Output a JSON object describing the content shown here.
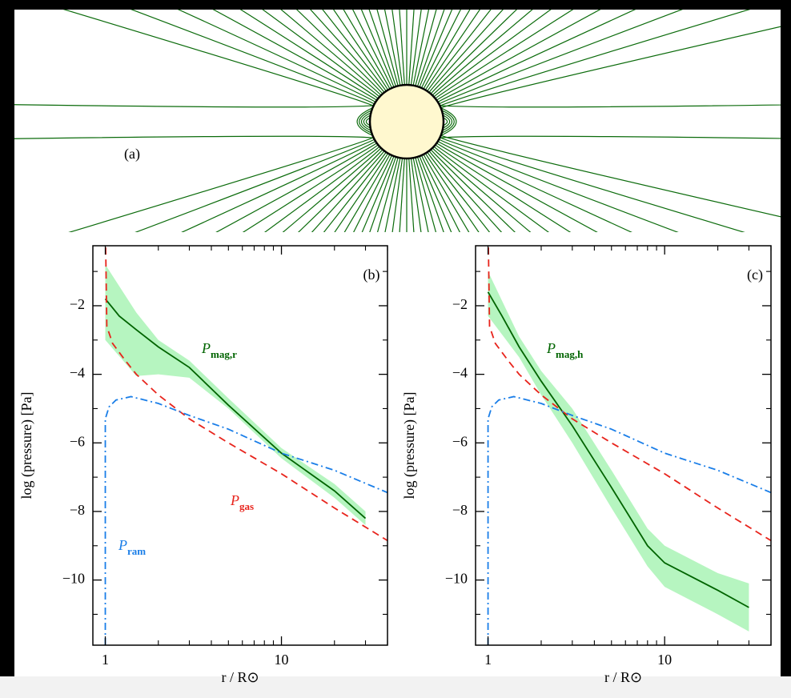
{
  "diagram": {
    "label": "(a)"
  },
  "chart_data": [
    {
      "type": "line",
      "label": "(b)",
      "xlabel": "r / R⊙",
      "ylabel": "log (pressure) [Pa]",
      "log_x": true,
      "xlim": [
        0.85,
        40
      ],
      "ylim": [
        -11.9,
        -0.25
      ],
      "xticks": [
        1,
        10
      ],
      "xminorticks": [
        2,
        3,
        4,
        5,
        6,
        7,
        8,
        9,
        20,
        30,
        40
      ],
      "yticks": [
        {
          "value": -10,
          "label": "−10"
        },
        {
          "value": -8,
          "label": "−8"
        },
        {
          "value": -6,
          "label": "−6"
        },
        {
          "value": -4,
          "label": "−4"
        },
        {
          "value": -2,
          "label": "−2"
        }
      ],
      "yminorticks": [
        -11,
        -9,
        -7,
        -5,
        -3,
        -1
      ],
      "series": [
        {
          "name": "P",
          "subscript": "mag,r",
          "color": "#006400",
          "dash": "solid",
          "x": [
            1,
            1.2,
            1.5,
            2,
            3,
            5,
            10,
            20,
            30
          ],
          "values": [
            -1.8,
            -2.3,
            -2.7,
            -3.2,
            -3.8,
            -4.9,
            -6.3,
            -7.4,
            -8.2
          ],
          "band_color": "#b6f5c0",
          "band_x": [
            1,
            1.5,
            2,
            3,
            5,
            10,
            20,
            30
          ],
          "band_upper": [
            -0.8,
            -2.2,
            -3.0,
            -3.6,
            -4.7,
            -6.15,
            -7.2,
            -8.0
          ],
          "band_lower": [
            -3.0,
            -4.05,
            -4.0,
            -4.1,
            -5.0,
            -6.45,
            -7.6,
            -8.4
          ]
        },
        {
          "name": "P",
          "subscript": "gas",
          "color": "#e8241c",
          "dash": "dashed",
          "x": [
            1.005,
            1.02,
            1.1,
            1.3,
            1.5,
            2,
            3,
            5,
            10,
            20,
            40
          ],
          "values": [
            -0.3,
            -2.6,
            -3.1,
            -3.6,
            -4.0,
            -4.6,
            -5.3,
            -6.0,
            -6.9,
            -7.9,
            -8.85
          ]
        },
        {
          "name": "P",
          "subscript": "ram",
          "color": "#1a7ee8",
          "dash": "dashdot",
          "x": [
            1,
            1,
            1.05,
            1.15,
            1.4,
            2,
            3,
            5,
            10,
            20,
            40
          ],
          "values": [
            -11.9,
            -5.3,
            -4.95,
            -4.75,
            -4.65,
            -4.85,
            -5.2,
            -5.6,
            -6.3,
            -6.8,
            -7.45
          ]
        }
      ]
    },
    {
      "type": "line",
      "label": "(c)",
      "xlabel": "r / R⊙",
      "ylabel": "log (pressure) [Pa]",
      "log_x": true,
      "xlim": [
        0.85,
        40
      ],
      "ylim": [
        -11.9,
        -0.25
      ],
      "xticks": [
        1,
        10
      ],
      "xminorticks": [
        2,
        3,
        4,
        5,
        6,
        7,
        8,
        9,
        20,
        30,
        40
      ],
      "yticks": [
        {
          "value": -10,
          "label": "−10"
        },
        {
          "value": -8,
          "label": "−8"
        },
        {
          "value": -6,
          "label": "−6"
        },
        {
          "value": -4,
          "label": "−4"
        },
        {
          "value": -2,
          "label": "−2"
        }
      ],
      "yminorticks": [
        -11,
        -9,
        -7,
        -5,
        -3,
        -1
      ],
      "series": [
        {
          "name": "P",
          "subscript": "mag,h",
          "color": "#006400",
          "dash": "solid",
          "x": [
            1,
            1.2,
            1.5,
            2,
            3,
            5,
            8,
            10,
            20,
            30
          ],
          "values": [
            -1.6,
            -2.3,
            -3.2,
            -4.2,
            -5.5,
            -7.3,
            -9.0,
            -9.5,
            -10.3,
            -10.8
          ],
          "band_color": "#b6f5c0",
          "band_x": [
            1,
            1.5,
            2,
            3,
            5,
            8,
            10,
            20,
            30
          ],
          "band_upper": [
            -1.0,
            -2.9,
            -3.9,
            -5.0,
            -6.8,
            -8.5,
            -9.0,
            -9.8,
            -10.1
          ],
          "band_lower": [
            -2.3,
            -3.5,
            -4.6,
            -6.0,
            -7.9,
            -9.6,
            -10.2,
            -11.0,
            -11.5
          ]
        },
        {
          "name": "P",
          "subscript": "gas",
          "color": "#e8241c",
          "dash": "dashed",
          "x": [
            1.005,
            1.02,
            1.1,
            1.3,
            1.5,
            2,
            3,
            5,
            10,
            20,
            40
          ],
          "values": [
            -0.3,
            -2.6,
            -3.1,
            -3.6,
            -4.0,
            -4.6,
            -5.3,
            -6.0,
            -6.9,
            -7.9,
            -8.85
          ]
        },
        {
          "name": "P",
          "subscript": "ram",
          "color": "#1a7ee8",
          "dash": "dashdot",
          "x": [
            1,
            1,
            1.05,
            1.15,
            1.4,
            2,
            3,
            5,
            10,
            20,
            40
          ],
          "values": [
            -11.9,
            -5.3,
            -4.95,
            -4.75,
            -4.65,
            -4.85,
            -5.2,
            -5.6,
            -6.3,
            -6.8,
            -7.45
          ]
        }
      ]
    }
  ]
}
